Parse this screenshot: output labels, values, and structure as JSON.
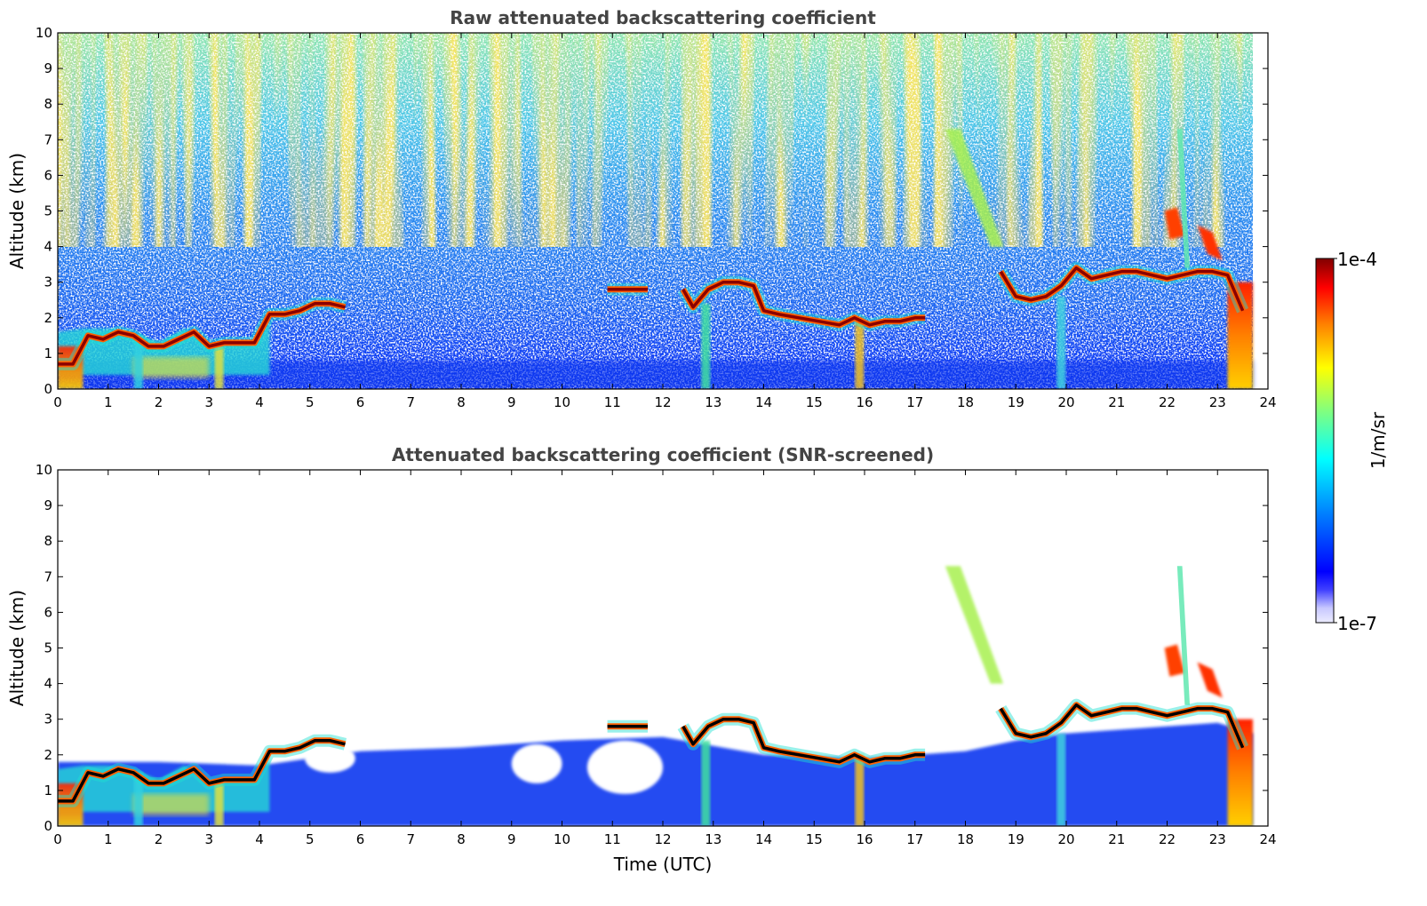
{
  "chart_data": [
    {
      "type": "heatmap",
      "title": "Raw attenuated backscattering coefficient",
      "xlabel": "",
      "ylabel": "Altitude (km)",
      "xlim": [
        0,
        24
      ],
      "ylim": [
        0,
        10
      ],
      "x_ticks": [
        "0",
        "1",
        "2",
        "3",
        "4",
        "5",
        "6",
        "7",
        "8",
        "9",
        "10",
        "11",
        "12",
        "13",
        "14",
        "15",
        "16",
        "17",
        "18",
        "19",
        "20",
        "21",
        "22",
        "23",
        "24"
      ],
      "y_ticks": [
        "0",
        "1",
        "2",
        "3",
        "4",
        "5",
        "6",
        "7",
        "8",
        "9",
        "10"
      ],
      "data_end_hour": 23.7,
      "screened": false,
      "cloud_layers": [
        {
          "x": [
            0.0,
            0.3,
            0.6,
            0.9,
            1.2,
            1.5,
            1.8,
            2.1,
            2.4,
            2.7,
            3.0,
            3.3,
            3.6,
            3.9,
            4.2,
            4.5,
            4.8,
            5.1,
            5.4,
            5.7
          ],
          "y": [
            0.7,
            0.7,
            1.5,
            1.4,
            1.6,
            1.5,
            1.2,
            1.2,
            1.4,
            1.6,
            1.2,
            1.3,
            1.3,
            1.3,
            2.1,
            2.1,
            2.2,
            2.4,
            2.4,
            2.3
          ]
        },
        {
          "x": [
            10.9,
            11.2,
            11.5,
            11.7
          ],
          "y": [
            2.8,
            2.8,
            2.8,
            2.8
          ]
        },
        {
          "x": [
            12.4,
            12.6,
            12.9,
            13.2,
            13.5,
            13.8,
            14.0,
            14.3,
            14.7,
            15.1,
            15.5,
            15.8,
            16.1,
            16.4,
            16.7,
            17.0,
            17.2
          ],
          "y": [
            2.8,
            2.3,
            2.8,
            3.0,
            3.0,
            2.9,
            2.2,
            2.1,
            2.0,
            1.9,
            1.8,
            2.0,
            1.8,
            1.9,
            1.9,
            2.0,
            2.0
          ]
        },
        {
          "x": [
            18.7,
            19.0,
            19.3,
            19.6,
            19.9,
            20.2,
            20.5,
            20.8,
            21.1,
            21.4,
            21.7,
            22.0,
            22.3,
            22.6,
            22.9,
            23.2,
            23.5
          ],
          "y": [
            3.3,
            2.6,
            2.5,
            2.6,
            2.9,
            3.4,
            3.1,
            3.2,
            3.3,
            3.3,
            3.2,
            3.1,
            3.2,
            3.3,
            3.3,
            3.2,
            2.2
          ]
        }
      ],
      "features": [
        {
          "name": "elevated layer",
          "x": [
            22.0,
            23.1
          ],
          "y": [
            3.8,
            5.0
          ]
        },
        {
          "name": "fall streak",
          "x": [
            17.7,
            18.7
          ],
          "y": [
            4.0,
            7.2
          ]
        },
        {
          "name": "surface precipitation",
          "x": [
            23.2,
            23.7
          ],
          "y": [
            0.0,
            3.0
          ]
        }
      ]
    },
    {
      "type": "heatmap",
      "title": "Attenuated backscattering coefficient (SNR-screened)",
      "xlabel": "Time (UTC)",
      "ylabel": "Altitude (km)",
      "xlim": [
        0,
        24
      ],
      "ylim": [
        0,
        10
      ],
      "x_ticks": [
        "0",
        "1",
        "2",
        "3",
        "4",
        "5",
        "6",
        "7",
        "8",
        "9",
        "10",
        "11",
        "12",
        "13",
        "14",
        "15",
        "16",
        "17",
        "18",
        "19",
        "20",
        "21",
        "22",
        "23",
        "24"
      ],
      "y_ticks": [
        "0",
        "1",
        "2",
        "3",
        "4",
        "5",
        "6",
        "7",
        "8",
        "9",
        "10"
      ],
      "data_end_hour": 23.7,
      "screened": true
    }
  ],
  "colorbar": {
    "label": "1/m/sr",
    "max_label": "1e-4",
    "min_label": "1e-7",
    "scale": "log",
    "range": [
      1e-07,
      0.0001
    ],
    "colormap": [
      "#ffffff",
      "#c8c8ff",
      "#0000ff",
      "#0080ff",
      "#00ffff",
      "#80ff80",
      "#ffff00",
      "#ff8000",
      "#ff0000",
      "#800000"
    ]
  }
}
